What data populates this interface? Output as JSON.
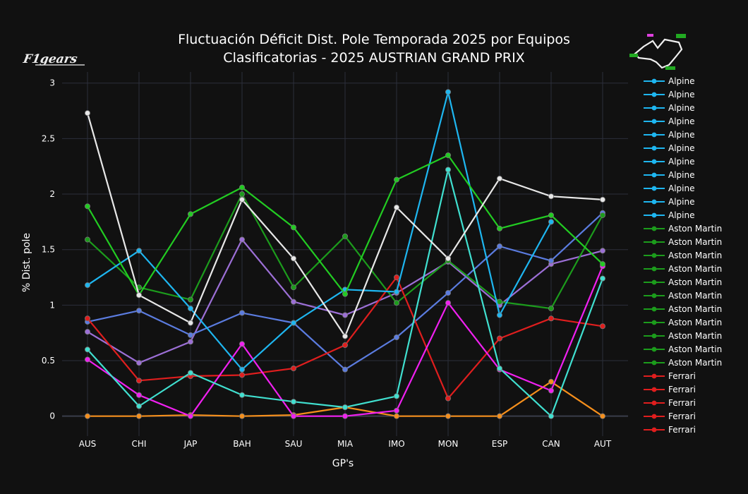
{
  "chart_data": {
    "type": "line",
    "title": "Fluctuación Déficit Dist. Pole Temporada 2025 por Equipos",
    "subtitle": "Clasificatorias - 2025 AUSTRIAN GRAND PRIX",
    "xlabel": "GP's",
    "ylabel": "% Dist. pole",
    "categories": [
      "AUS",
      "CHI",
      "JAP",
      "BAH",
      "SAU",
      "MIA",
      "IMO",
      "MON",
      "ESP",
      "CAN",
      "AUT"
    ],
    "ylim": [
      -0.18,
      3.1
    ],
    "yticks": [
      0,
      0.5,
      1,
      1.5,
      2,
      2.5,
      3
    ],
    "ytick_labels": [
      "0",
      "0.5",
      "1",
      "1.5",
      "2",
      "2.5",
      "3"
    ],
    "grid": true,
    "legend_position": "right",
    "logo_text": "F1 gears",
    "series": [
      {
        "color": "#F58F1C",
        "values": [
          0.0,
          0.0,
          0.01,
          0.0,
          0.01,
          0.08,
          0.0,
          0.0,
          0.0,
          0.31,
          0.0
        ]
      },
      {
        "color": "#9C6FD6",
        "values": [
          0.76,
          0.48,
          0.67,
          1.59,
          1.03,
          0.91,
          1.11,
          1.39,
          1.0,
          1.37,
          1.49
        ]
      },
      {
        "color": "#5B7CE0",
        "values": [
          0.85,
          0.95,
          0.73,
          0.93,
          0.84,
          0.42,
          0.71,
          1.11,
          1.53,
          1.4,
          1.83
        ]
      },
      {
        "color": "#1C9C1C",
        "values": [
          1.59,
          1.16,
          1.05,
          2.0,
          1.16,
          1.62,
          1.02,
          1.4,
          1.03,
          0.97,
          1.81
        ]
      },
      {
        "color": "#E01E1E",
        "values": [
          0.88,
          0.32,
          0.36,
          0.37,
          0.43,
          0.64,
          1.25,
          0.16,
          0.7,
          0.88,
          0.81
        ]
      },
      {
        "color": "#F020F0",
        "values": [
          0.51,
          0.19,
          0.0,
          0.65,
          0.0,
          0.0,
          0.05,
          1.02,
          0.42,
          0.23,
          1.35
        ]
      },
      {
        "color": "#40E0D0",
        "values": [
          0.6,
          0.09,
          0.39,
          0.19,
          0.13,
          0.08,
          0.18,
          2.22,
          0.43,
          0.0,
          1.24
        ]
      },
      {
        "color": "#1EB6F0",
        "values": [
          1.18,
          1.49,
          0.97,
          0.42,
          0.84,
          1.14,
          1.12,
          2.92,
          0.91,
          1.75,
          null
        ]
      },
      {
        "color": "#22CC22",
        "values": [
          1.89,
          1.09,
          1.82,
          2.06,
          1.7,
          1.1,
          2.13,
          2.35,
          1.69,
          1.81,
          1.37
        ]
      },
      {
        "color": "#E8E8E8",
        "values": [
          2.73,
          1.09,
          0.84,
          1.95,
          1.42,
          0.72,
          1.88,
          1.42,
          2.14,
          1.98,
          1.95
        ]
      }
    ],
    "legend": [
      {
        "label": "Alpine",
        "color": "#1EB6F0"
      },
      {
        "label": "Alpine",
        "color": "#1EB6F0"
      },
      {
        "label": "Alpine",
        "color": "#1EB6F0"
      },
      {
        "label": "Alpine",
        "color": "#1EB6F0"
      },
      {
        "label": "Alpine",
        "color": "#1EB6F0"
      },
      {
        "label": "Alpine",
        "color": "#1EB6F0"
      },
      {
        "label": "Alpine",
        "color": "#1EB6F0"
      },
      {
        "label": "Alpine",
        "color": "#1EB6F0"
      },
      {
        "label": "Alpine",
        "color": "#1EB6F0"
      },
      {
        "label": "Alpine",
        "color": "#1EB6F0"
      },
      {
        "label": "Alpine",
        "color": "#1EB6F0"
      },
      {
        "label": "Aston Martin",
        "color": "#1C9C1C"
      },
      {
        "label": "Aston Martin",
        "color": "#1C9C1C"
      },
      {
        "label": "Aston Martin",
        "color": "#1C9C1C"
      },
      {
        "label": "Aston Martin",
        "color": "#1C9C1C"
      },
      {
        "label": "Aston Martin",
        "color": "#1C9C1C"
      },
      {
        "label": "Aston Martin",
        "color": "#1C9C1C"
      },
      {
        "label": "Aston Martin",
        "color": "#1C9C1C"
      },
      {
        "label": "Aston Martin",
        "color": "#1C9C1C"
      },
      {
        "label": "Aston Martin",
        "color": "#1C9C1C"
      },
      {
        "label": "Aston Martin",
        "color": "#1C9C1C"
      },
      {
        "label": "Aston Martin",
        "color": "#1C9C1C"
      },
      {
        "label": "Ferrari",
        "color": "#E01E1E"
      },
      {
        "label": "Ferrari",
        "color": "#E01E1E"
      },
      {
        "label": "Ferrari",
        "color": "#E01E1E"
      },
      {
        "label": "Ferrari",
        "color": "#E01E1E"
      },
      {
        "label": "Ferrari",
        "color": "#E01E1E"
      }
    ]
  }
}
